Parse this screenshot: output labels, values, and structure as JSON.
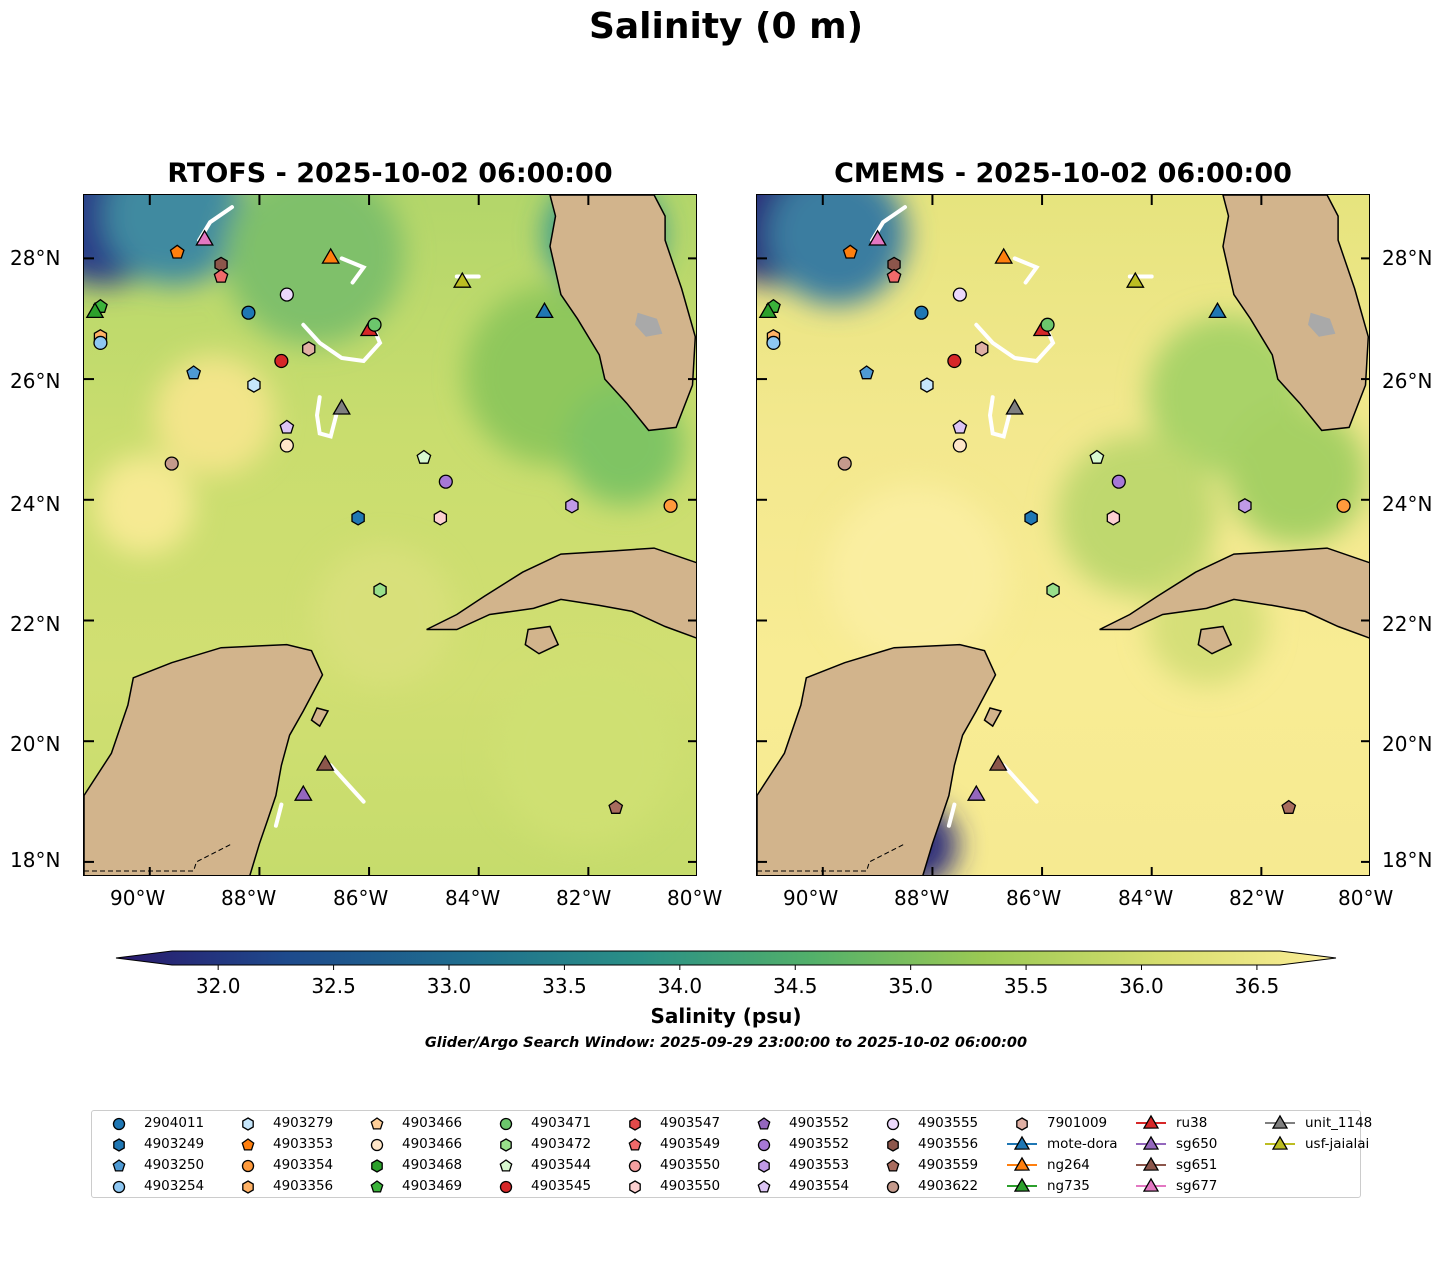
{
  "title": "Salinity (0 m)",
  "panels": [
    {
      "title": "RTOFS - 2025-10-02 06:00:00"
    },
    {
      "title": "CMEMS - 2025-10-02 06:00:00"
    }
  ],
  "lat_ticks": [
    "28°N",
    "26°N",
    "24°N",
    "22°N",
    "20°N",
    "18°N"
  ],
  "lon_ticks": [
    "90°W",
    "88°W",
    "86°W",
    "84°W",
    "82°W",
    "80°W"
  ],
  "colorbar": {
    "label": "Salinity (psu)",
    "min": 31.8,
    "max": 36.6,
    "ticks": [
      "32.0",
      "32.5",
      "33.0",
      "33.5",
      "34.0",
      "34.5",
      "35.0",
      "35.5",
      "36.0",
      "36.5"
    ],
    "colors": [
      "#2a186c",
      "#1e4a8c",
      "#1f6e8e",
      "#2a9086",
      "#52b06a",
      "#9ac954",
      "#d7de6e",
      "#fdee98"
    ]
  },
  "search_window": "Glider/Argo Search Window: 2025-09-29 23:00:00 to 2025-10-02 06:00:00",
  "legend": [
    {
      "label": "2904011",
      "shape": "circle",
      "color": "#1f77b4"
    },
    {
      "label": "4903249",
      "shape": "hexagon",
      "color": "#1f77b4"
    },
    {
      "label": "4903250",
      "shape": "pentagon",
      "color": "#4e9ad4"
    },
    {
      "label": "4903254",
      "shape": "circle",
      "color": "#8ec7f2"
    },
    {
      "label": "4903279",
      "shape": "hexagon",
      "color": "#c6e6fb"
    },
    {
      "label": "4903353",
      "shape": "pentagon",
      "color": "#ff7f0e"
    },
    {
      "label": "4903354",
      "shape": "circle",
      "color": "#ff9a3c"
    },
    {
      "label": "4903356",
      "shape": "hexagon",
      "color": "#ffb266"
    },
    {
      "label": "4903466",
      "shape": "pentagon",
      "color": "#ffcf99"
    },
    {
      "label": "4903466",
      "shape": "circle",
      "color": "#ffe6c8"
    },
    {
      "label": "4903468",
      "shape": "hexagon",
      "color": "#2ca02c"
    },
    {
      "label": "4903469",
      "shape": "pentagon",
      "color": "#3bb33b"
    },
    {
      "label": "4903471",
      "shape": "circle",
      "color": "#6cc66c"
    },
    {
      "label": "4903472",
      "shape": "hexagon",
      "color": "#98df8a"
    },
    {
      "label": "4903544",
      "shape": "pentagon",
      "color": "#d8f8d0"
    },
    {
      "label": "4903545",
      "shape": "circle",
      "color": "#d62728"
    },
    {
      "label": "4903547",
      "shape": "hexagon",
      "color": "#e04a4a"
    },
    {
      "label": "4903549",
      "shape": "pentagon",
      "color": "#f06a6a"
    },
    {
      "label": "4903550",
      "shape": "circle",
      "color": "#f4a0a0"
    },
    {
      "label": "4903550",
      "shape": "hexagon",
      "color": "#fcd0d0"
    },
    {
      "label": "4903552",
      "shape": "pentagon",
      "color": "#9467bd"
    },
    {
      "label": "4903552",
      "shape": "circle",
      "color": "#a678d6"
    },
    {
      "label": "4903553",
      "shape": "hexagon",
      "color": "#c09ae6"
    },
    {
      "label": "4903554",
      "shape": "pentagon",
      "color": "#dcc4f4"
    },
    {
      "label": "4903555",
      "shape": "circle",
      "color": "#ecd8fb"
    },
    {
      "label": "4903556",
      "shape": "hexagon",
      "color": "#8c564b"
    },
    {
      "label": "4903559",
      "shape": "pentagon",
      "color": "#a86c5e"
    },
    {
      "label": "4903622",
      "shape": "circle",
      "color": "#c49a8c"
    },
    {
      "label": "7901009",
      "shape": "hexagon",
      "color": "#e0b0a4"
    },
    {
      "label": "mote-dora",
      "shape": "triangle",
      "color": "#1f77b4",
      "line": true
    },
    {
      "label": "ng264",
      "shape": "triangle",
      "color": "#ff7f0e",
      "line": true
    },
    {
      "label": "ng735",
      "shape": "triangle",
      "color": "#2ca02c",
      "line": true
    },
    {
      "label": "ru38",
      "shape": "triangle",
      "color": "#d62728",
      "line": true
    },
    {
      "label": "sg650",
      "shape": "triangle",
      "color": "#9467bd",
      "line": true
    },
    {
      "label": "sg651",
      "shape": "triangle",
      "color": "#8c564b",
      "line": true
    },
    {
      "label": "sg677",
      "shape": "triangle",
      "color": "#e377c2",
      "line": true
    },
    {
      "label": "unit_1148",
      "shape": "triangle",
      "color": "#7f7f7f",
      "line": true
    },
    {
      "label": "usf-jaialai",
      "shape": "triangle",
      "color": "#bcbd22",
      "line": true
    }
  ],
  "markers": [
    {
      "id": "4903353",
      "lon": -89.5,
      "lat": 28.1
    },
    {
      "id": "sg677",
      "lon": -89.0,
      "lat": 28.3
    },
    {
      "id": "4903556",
      "lon": -88.7,
      "lat": 27.9
    },
    {
      "id": "4903549",
      "lon": -88.7,
      "lat": 27.7
    },
    {
      "id": "ng264",
      "lon": -86.7,
      "lat": 28.0
    },
    {
      "id": "usf-jaialai",
      "lon": -84.3,
      "lat": 27.6
    },
    {
      "id": "mote-dora",
      "lon": -82.8,
      "lat": 27.1
    },
    {
      "id": "4903555",
      "lon": -87.5,
      "lat": 27.4
    },
    {
      "id": "2904011",
      "lon": -88.2,
      "lat": 27.1
    },
    {
      "id": "4903469",
      "lon": -90.9,
      "lat": 27.2
    },
    {
      "id": "ng735",
      "lon": -91.0,
      "lat": 27.1
    },
    {
      "id": "4903356",
      "lon": -90.9,
      "lat": 26.7
    },
    {
      "id": "4903254",
      "lon": -90.9,
      "lat": 26.6
    },
    {
      "id": "ru38",
      "lon": -86.0,
      "lat": 26.8
    },
    {
      "id": "4903471",
      "lon": -85.9,
      "lat": 26.9
    },
    {
      "id": "7901009",
      "lon": -87.1,
      "lat": 26.5
    },
    {
      "id": "4903545",
      "lon": -87.6,
      "lat": 26.3
    },
    {
      "id": "4903250",
      "lon": -89.2,
      "lat": 26.1
    },
    {
      "id": "4903279",
      "lon": -88.1,
      "lat": 25.9
    },
    {
      "id": "unit_1148",
      "lon": -86.5,
      "lat": 25.5
    },
    {
      "id": "4903554",
      "lon": -87.5,
      "lat": 25.2
    },
    {
      "id": "4903466",
      "lon": -87.5,
      "lat": 24.9
    },
    {
      "id": "4903544",
      "lon": -85.0,
      "lat": 24.7
    },
    {
      "id": "4903622",
      "lon": -89.6,
      "lat": 24.6
    },
    {
      "id": "4903552",
      "lon": -84.6,
      "lat": 24.3
    },
    {
      "id": "4903553",
      "lon": -82.3,
      "lat": 23.9
    },
    {
      "id": "4903354",
      "lon": -80.5,
      "lat": 23.9
    },
    {
      "id": "4903249",
      "lon": -86.2,
      "lat": 23.7
    },
    {
      "id": "4903550",
      "lon": -84.7,
      "lat": 23.7
    },
    {
      "id": "4903472",
      "lon": -85.8,
      "lat": 22.5
    },
    {
      "id": "sg651",
      "lon": -86.8,
      "lat": 19.6
    },
    {
      "id": "sg650",
      "lon": -87.2,
      "lat": 19.1
    },
    {
      "id": "4903559",
      "lon": -81.5,
      "lat": 18.9
    }
  ]
}
